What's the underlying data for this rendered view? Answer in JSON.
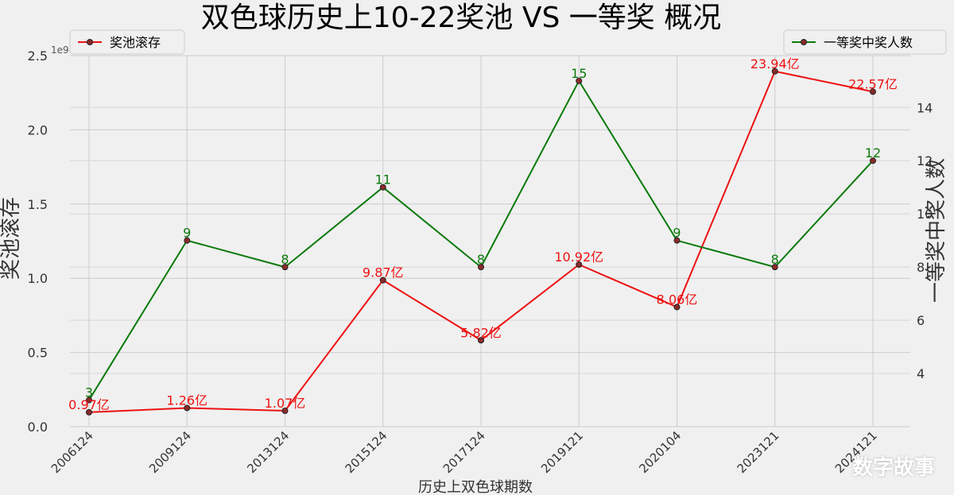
{
  "chart_data": {
    "type": "line",
    "title": "双色球历史上10-22奖池 VS 一等奖 概况",
    "xlabel": "历史上双色球期数",
    "ylabel_left": "奖池滚存",
    "ylabel_right": "一等奖中奖人数",
    "left_axis_multiplier": "1e9",
    "categories": [
      "2006124",
      "2009124",
      "2013124",
      "2015124",
      "2017124",
      "2019121",
      "2020104",
      "2023121",
      "2024121"
    ],
    "ylim_left": [
      0,
      2.5
    ],
    "ylim_right": [
      2.0,
      15.95
    ],
    "left_ticks": [
      "0.0",
      "0.5",
      "1.0",
      "1.5",
      "2.0",
      "2.5"
    ],
    "right_ticks": [
      "4",
      "6",
      "8",
      "10",
      "12",
      "14"
    ],
    "grid": true,
    "series": [
      {
        "name": "奖池滚存",
        "axis": "left",
        "color": "#ee1111",
        "values": [
          0.097,
          0.126,
          0.107,
          0.987,
          0.582,
          1.092,
          0.806,
          2.394,
          2.257
        ],
        "labels": [
          "0.97亿",
          "1.26亿",
          "1.07亿",
          "9.87亿",
          "5.82亿",
          "10.92亿",
          "8.06亿",
          "23.94亿",
          "22.57亿"
        ],
        "legend_position": "top-left"
      },
      {
        "name": "一等奖中奖人数",
        "axis": "right",
        "color": "#0a7a0a",
        "values": [
          3,
          9,
          8,
          11,
          8,
          15,
          9,
          8,
          12
        ],
        "labels": [
          "3",
          "9",
          "8",
          "11",
          "8",
          "15",
          "9",
          "8",
          "12"
        ],
        "legend_position": "top-right"
      }
    ]
  },
  "watermark": "数字故事"
}
